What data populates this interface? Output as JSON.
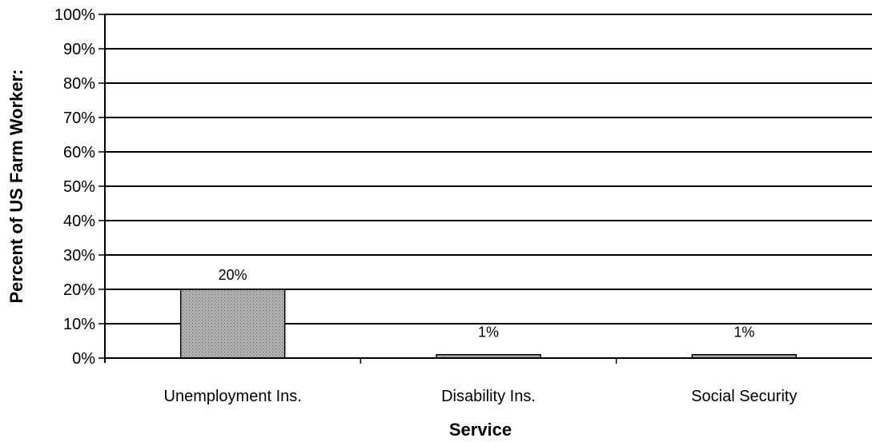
{
  "chart_data": {
    "type": "bar",
    "title": "",
    "xlabel": "Service",
    "ylabel": "Percent of US Farm Worker:",
    "categories": [
      "Unemployment Ins.",
      "Disability Ins.",
      "Social Security"
    ],
    "values": [
      20,
      1,
      1
    ],
    "data_labels": [
      "20%",
      "1%",
      "1%"
    ],
    "y_ticks": [
      "0%",
      "10%",
      "20%",
      "30%",
      "40%",
      "50%",
      "60%",
      "70%",
      "80%",
      "90%",
      "100%"
    ],
    "ylim": [
      0,
      100
    ],
    "grid": true,
    "legend": "none",
    "colors": {
      "bar_fill": "#b3b3b3",
      "bar_stroke": "#000000",
      "grid": "#000000"
    }
  }
}
